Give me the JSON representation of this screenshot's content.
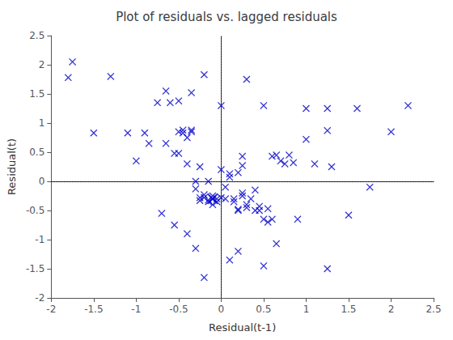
{
  "chart_data": {
    "type": "scatter",
    "title": "Plot of residuals vs. lagged residuals",
    "xlabel": "Residual(t-1)",
    "ylabel": "Residual(t)",
    "xlim": [
      -2,
      2.5
    ],
    "ylim": [
      -2,
      2.5
    ],
    "xticks": [
      -2,
      -1.5,
      -1,
      -0.5,
      0,
      0.5,
      1,
      1.5,
      2,
      2.5
    ],
    "yticks": [
      -2,
      -1.5,
      -1,
      -0.5,
      0,
      0.5,
      1,
      1.5,
      2,
      2.5
    ],
    "color": "#0000CC",
    "marker": "x",
    "grid": false,
    "series": [
      {
        "x": [
          -1.75,
          -1.5,
          -1.3,
          -1.1,
          -1.0,
          -0.85,
          -0.75,
          -0.65,
          -0.6,
          -0.55,
          -0.5,
          -0.5,
          -0.45,
          -0.45,
          -0.4,
          -0.4,
          -0.35,
          -0.35,
          -0.3,
          -0.3,
          -0.25,
          -0.25,
          -0.25,
          -0.2,
          -0.2,
          -0.15,
          -0.15,
          -0.15,
          -0.1,
          -0.1,
          -0.05,
          -0.05,
          0.0,
          0.0,
          0.05,
          0.05,
          0.1,
          0.1,
          0.15,
          0.15,
          0.2,
          0.2,
          0.2,
          0.25,
          0.25,
          0.25,
          0.3,
          0.3,
          0.35,
          0.4,
          0.4,
          0.45,
          0.5,
          0.55,
          0.6,
          0.65,
          0.7,
          0.75,
          0.8,
          0.85,
          0.9,
          1.0,
          1.1,
          1.25,
          1.3,
          1.5,
          1.6,
          1.75,
          2.0,
          2.2,
          -1.8,
          -0.9,
          0.3,
          0.5,
          0.6,
          1.0,
          1.25,
          -0.7,
          -0.55,
          -0.4,
          -0.3,
          -0.2,
          0.1,
          0.2,
          0.5,
          0.65,
          -0.65,
          -0.5,
          -0.35,
          -0.2,
          0.0,
          0.25,
          0.45,
          0.55,
          1.25,
          -0.1
        ],
        "values": [
          2.05,
          0.83,
          1.8,
          0.83,
          0.35,
          0.65,
          1.35,
          0.65,
          1.35,
          0.48,
          0.85,
          0.48,
          0.83,
          0.88,
          0.3,
          0.75,
          0.85,
          0.88,
          -0.13,
          0.0,
          -0.28,
          -0.33,
          0.25,
          -0.23,
          -0.28,
          -0.35,
          -0.32,
          0.0,
          -0.25,
          -0.4,
          -0.3,
          -0.35,
          -0.28,
          0.2,
          -0.3,
          -0.1,
          0.13,
          0.07,
          -0.3,
          -0.35,
          -0.48,
          -0.5,
          0.15,
          -0.25,
          -0.2,
          0.43,
          -0.45,
          -0.4,
          -0.3,
          -0.5,
          -0.15,
          -0.43,
          -0.65,
          -0.7,
          -0.65,
          0.45,
          0.35,
          0.3,
          0.45,
          0.32,
          -0.65,
          0.72,
          0.3,
          1.25,
          0.25,
          -0.58,
          1.25,
          -0.1,
          0.85,
          1.3,
          1.78,
          0.83,
          1.75,
          1.3,
          0.43,
          1.25,
          0.87,
          -0.55,
          -0.75,
          -0.9,
          -1.15,
          -1.65,
          -1.35,
          -1.2,
          -1.45,
          -1.07,
          1.55,
          1.38,
          1.52,
          1.83,
          1.3,
          0.27,
          -0.5,
          -0.47,
          -1.5,
          -0.3
        ]
      },
      {
        "x": [
          -0.1
        ],
        "values": [
          -0.3
        ]
      }
    ]
  }
}
